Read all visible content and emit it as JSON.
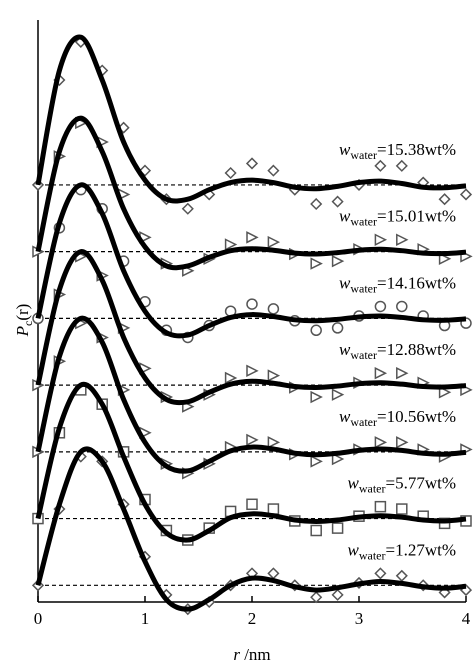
{
  "chart_data": {
    "type": "line",
    "ylabel_symbol": "P",
    "ylabel_subscript": "c",
    "ylabel_rest": "(r)",
    "xlabel_symbol": "r",
    "xlabel_unit": " /nm",
    "legend_symbol": "w",
    "legend_subscript": "water",
    "x": [
      0,
      0.2,
      0.4,
      0.6,
      0.8,
      1.0,
      1.2,
      1.4,
      1.6,
      1.8,
      2.0,
      2.2,
      2.4,
      2.6,
      2.8,
      3.0,
      3.2,
      3.4,
      3.6,
      3.8,
      4.0
    ],
    "xlim": [
      0,
      4
    ],
    "xticks": [
      0,
      1,
      2,
      3,
      4
    ],
    "ylim": [
      0,
      12
    ],
    "series": [
      {
        "name": "=15.38wt%",
        "color": "#000000",
        "marker": "diamond",
        "baseline": 8.75,
        "values": [
          0,
          2.4,
          3.1,
          2.2,
          0.9,
          0.1,
          -0.3,
          -0.3,
          -0.1,
          0.05,
          0.1,
          0.05,
          -0.05,
          -0.08,
          -0.03,
          0.05,
          0.08,
          0.03,
          -0.05,
          -0.06,
          -0.02
        ],
        "points": [
          0,
          2.2,
          3.0,
          2.4,
          1.2,
          0.3,
          -0.3,
          -0.5,
          -0.2,
          0.25,
          0.45,
          0.3,
          -0.1,
          -0.4,
          -0.35,
          0,
          0.4,
          0.4,
          0.05,
          -0.3,
          -0.2
        ]
      },
      {
        "name": "=15.01wt%",
        "color": "#000000",
        "marker": "triangle",
        "baseline": 7.35,
        "values": [
          0,
          2.1,
          2.8,
          2.1,
          0.9,
          0.1,
          -0.3,
          -0.3,
          -0.12,
          0.02,
          0.06,
          0.03,
          -0.03,
          -0.05,
          -0.02,
          0.03,
          0.05,
          0.02,
          -0.03,
          -0.04,
          -0.01
        ],
        "points": [
          0,
          2.0,
          2.7,
          2.3,
          1.2,
          0.3,
          -0.25,
          -0.4,
          -0.15,
          0.15,
          0.3,
          0.2,
          -0.05,
          -0.25,
          -0.2,
          0.05,
          0.25,
          0.25,
          0.05,
          -0.15,
          -0.1
        ]
      },
      {
        "name": "=14.16wt%",
        "color": "#000000",
        "marker": "circle",
        "baseline": 5.95,
        "values": [
          0,
          2.0,
          2.8,
          2.2,
          1.0,
          0.15,
          -0.3,
          -0.35,
          -0.15,
          0.02,
          0.08,
          0.04,
          -0.03,
          -0.05,
          -0.02,
          0.03,
          0.05,
          0.02,
          -0.03,
          -0.04,
          -0.01
        ],
        "points": [
          0,
          1.9,
          2.7,
          2.3,
          1.2,
          0.35,
          -0.25,
          -0.4,
          -0.15,
          0.15,
          0.3,
          0.2,
          -0.05,
          -0.25,
          -0.2,
          0.05,
          0.25,
          0.25,
          0.05,
          -0.15,
          -0.1
        ]
      },
      {
        "name": "=12.88wt%",
        "color": "#000000",
        "marker": "triangle",
        "baseline": 4.55,
        "values": [
          0,
          2.0,
          2.8,
          2.2,
          1.0,
          0.15,
          -0.3,
          -0.35,
          -0.15,
          0.02,
          0.08,
          0.04,
          -0.03,
          -0.05,
          -0.02,
          0.03,
          0.05,
          0.02,
          -0.03,
          -0.04,
          -0.01
        ],
        "points": [
          0,
          1.9,
          2.7,
          2.3,
          1.2,
          0.35,
          -0.25,
          -0.45,
          -0.2,
          0.15,
          0.3,
          0.2,
          -0.05,
          -0.25,
          -0.2,
          0.05,
          0.25,
          0.25,
          0.05,
          -0.15,
          -0.1
        ]
      },
      {
        "name": "=10.56wt%",
        "color": "#000000",
        "marker": "triangle",
        "baseline": 3.15,
        "values": [
          0,
          2.0,
          2.8,
          2.3,
          1.1,
          0.2,
          -0.3,
          -0.4,
          -0.2,
          0.02,
          0.1,
          0.06,
          -0.03,
          -0.06,
          -0.03,
          0.03,
          0.06,
          0.03,
          -0.03,
          -0.05,
          -0.01
        ],
        "points": [
          0,
          1.9,
          2.7,
          2.4,
          1.3,
          0.4,
          -0.25,
          -0.45,
          -0.25,
          0.1,
          0.25,
          0.2,
          -0.05,
          -0.2,
          -0.15,
          0.05,
          0.2,
          0.2,
          0.05,
          -0.1,
          0.05
        ]
      },
      {
        "name": "=5.77wt%",
        "color": "#000000",
        "marker": "square",
        "baseline": 1.75,
        "values": [
          0,
          1.9,
          2.8,
          2.4,
          1.3,
          0.3,
          -0.3,
          -0.45,
          -0.25,
          0.02,
          0.1,
          0.06,
          -0.03,
          -0.06,
          -0.03,
          0.03,
          0.06,
          0.03,
          -0.03,
          -0.05,
          -0.01
        ],
        "points": [
          0,
          1.8,
          2.7,
          2.4,
          1.4,
          0.4,
          -0.25,
          -0.45,
          -0.2,
          0.15,
          0.3,
          0.2,
          -0.05,
          -0.25,
          -0.2,
          0.05,
          0.25,
          0.2,
          0.05,
          -0.1,
          -0.05
        ]
      },
      {
        "name": "=1.27wt%",
        "color": "#000000",
        "marker": "diamond",
        "baseline": 0.35,
        "values": [
          0,
          1.7,
          2.8,
          2.6,
          1.6,
          0.5,
          -0.3,
          -0.5,
          -0.3,
          0,
          0.15,
          0.1,
          -0.03,
          -0.1,
          -0.05,
          0.03,
          0.08,
          0.04,
          -0.03,
          -0.06,
          -0.02
        ],
        "points": [
          0,
          1.6,
          2.7,
          2.6,
          1.7,
          0.6,
          -0.2,
          -0.5,
          -0.35,
          0,
          0.25,
          0.25,
          0,
          -0.25,
          -0.2,
          0.05,
          0.25,
          0.2,
          0,
          -0.15,
          -0.1
        ]
      }
    ]
  }
}
